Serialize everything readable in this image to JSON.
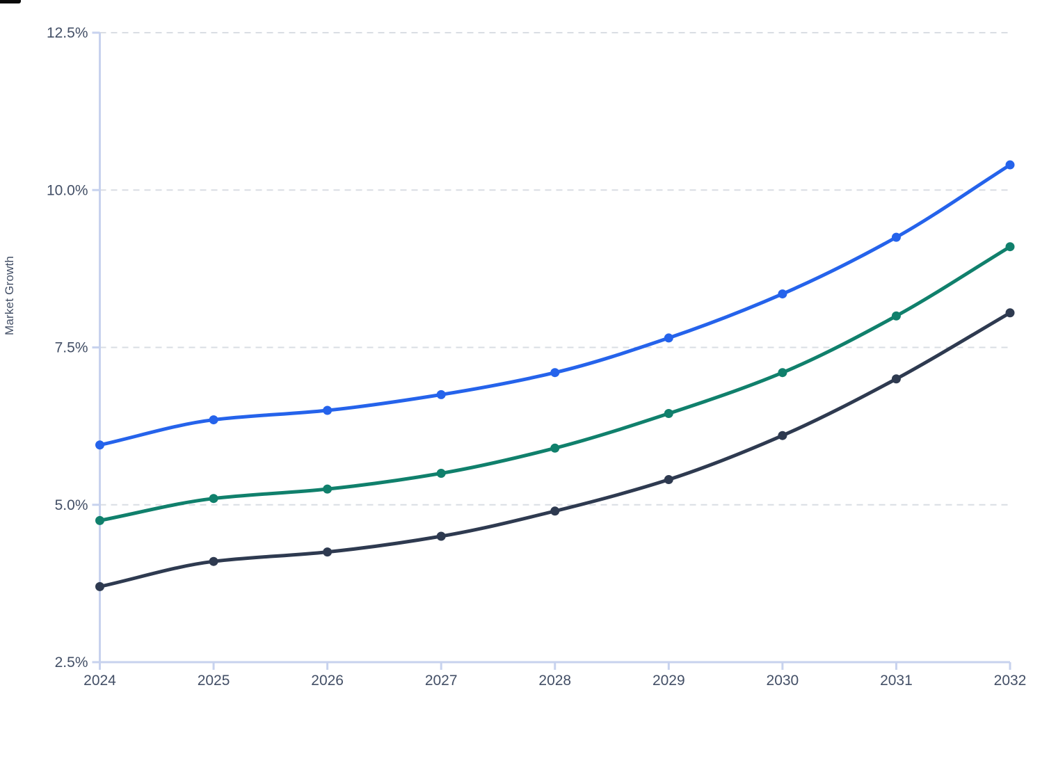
{
  "decor": {
    "top_left_bar_color": "#0a0a0a"
  },
  "chart_data": {
    "type": "line",
    "title": "",
    "xlabel": "",
    "ylabel": "Market Growth",
    "categories": [
      "2024",
      "2025",
      "2026",
      "2027",
      "2028",
      "2029",
      "2030",
      "2031",
      "2032"
    ],
    "series": [
      {
        "name": "blue",
        "color": "#2563eb",
        "values": [
          5.95,
          6.35,
          6.5,
          6.75,
          7.1,
          7.65,
          8.35,
          9.25,
          10.4
        ]
      },
      {
        "name": "green",
        "color": "#10806c",
        "values": [
          4.75,
          5.1,
          5.25,
          5.5,
          5.9,
          6.45,
          7.1,
          8.0,
          9.1
        ]
      },
      {
        "name": "dark-navy",
        "color": "#2e3a50",
        "values": [
          3.7,
          4.1,
          4.25,
          4.5,
          4.9,
          5.4,
          6.1,
          7.0,
          8.05
        ]
      }
    ],
    "ylim": [
      2.5,
      12.5
    ],
    "y_tick_values": [
      12.5,
      10.0,
      7.5,
      5.0,
      2.5
    ],
    "y_tick_labels": [
      "12.5%",
      "10.0%",
      "7.5%",
      "5.0%",
      "2.5%"
    ],
    "curve": "monotone",
    "legend": "none",
    "grid": {
      "horizontal": true,
      "vertical": false,
      "style": "dashed",
      "color": "#d9dde3"
    },
    "axis_color": "#c7d2ee",
    "label_color": "#434f66",
    "point_style": "filled-circle"
  }
}
